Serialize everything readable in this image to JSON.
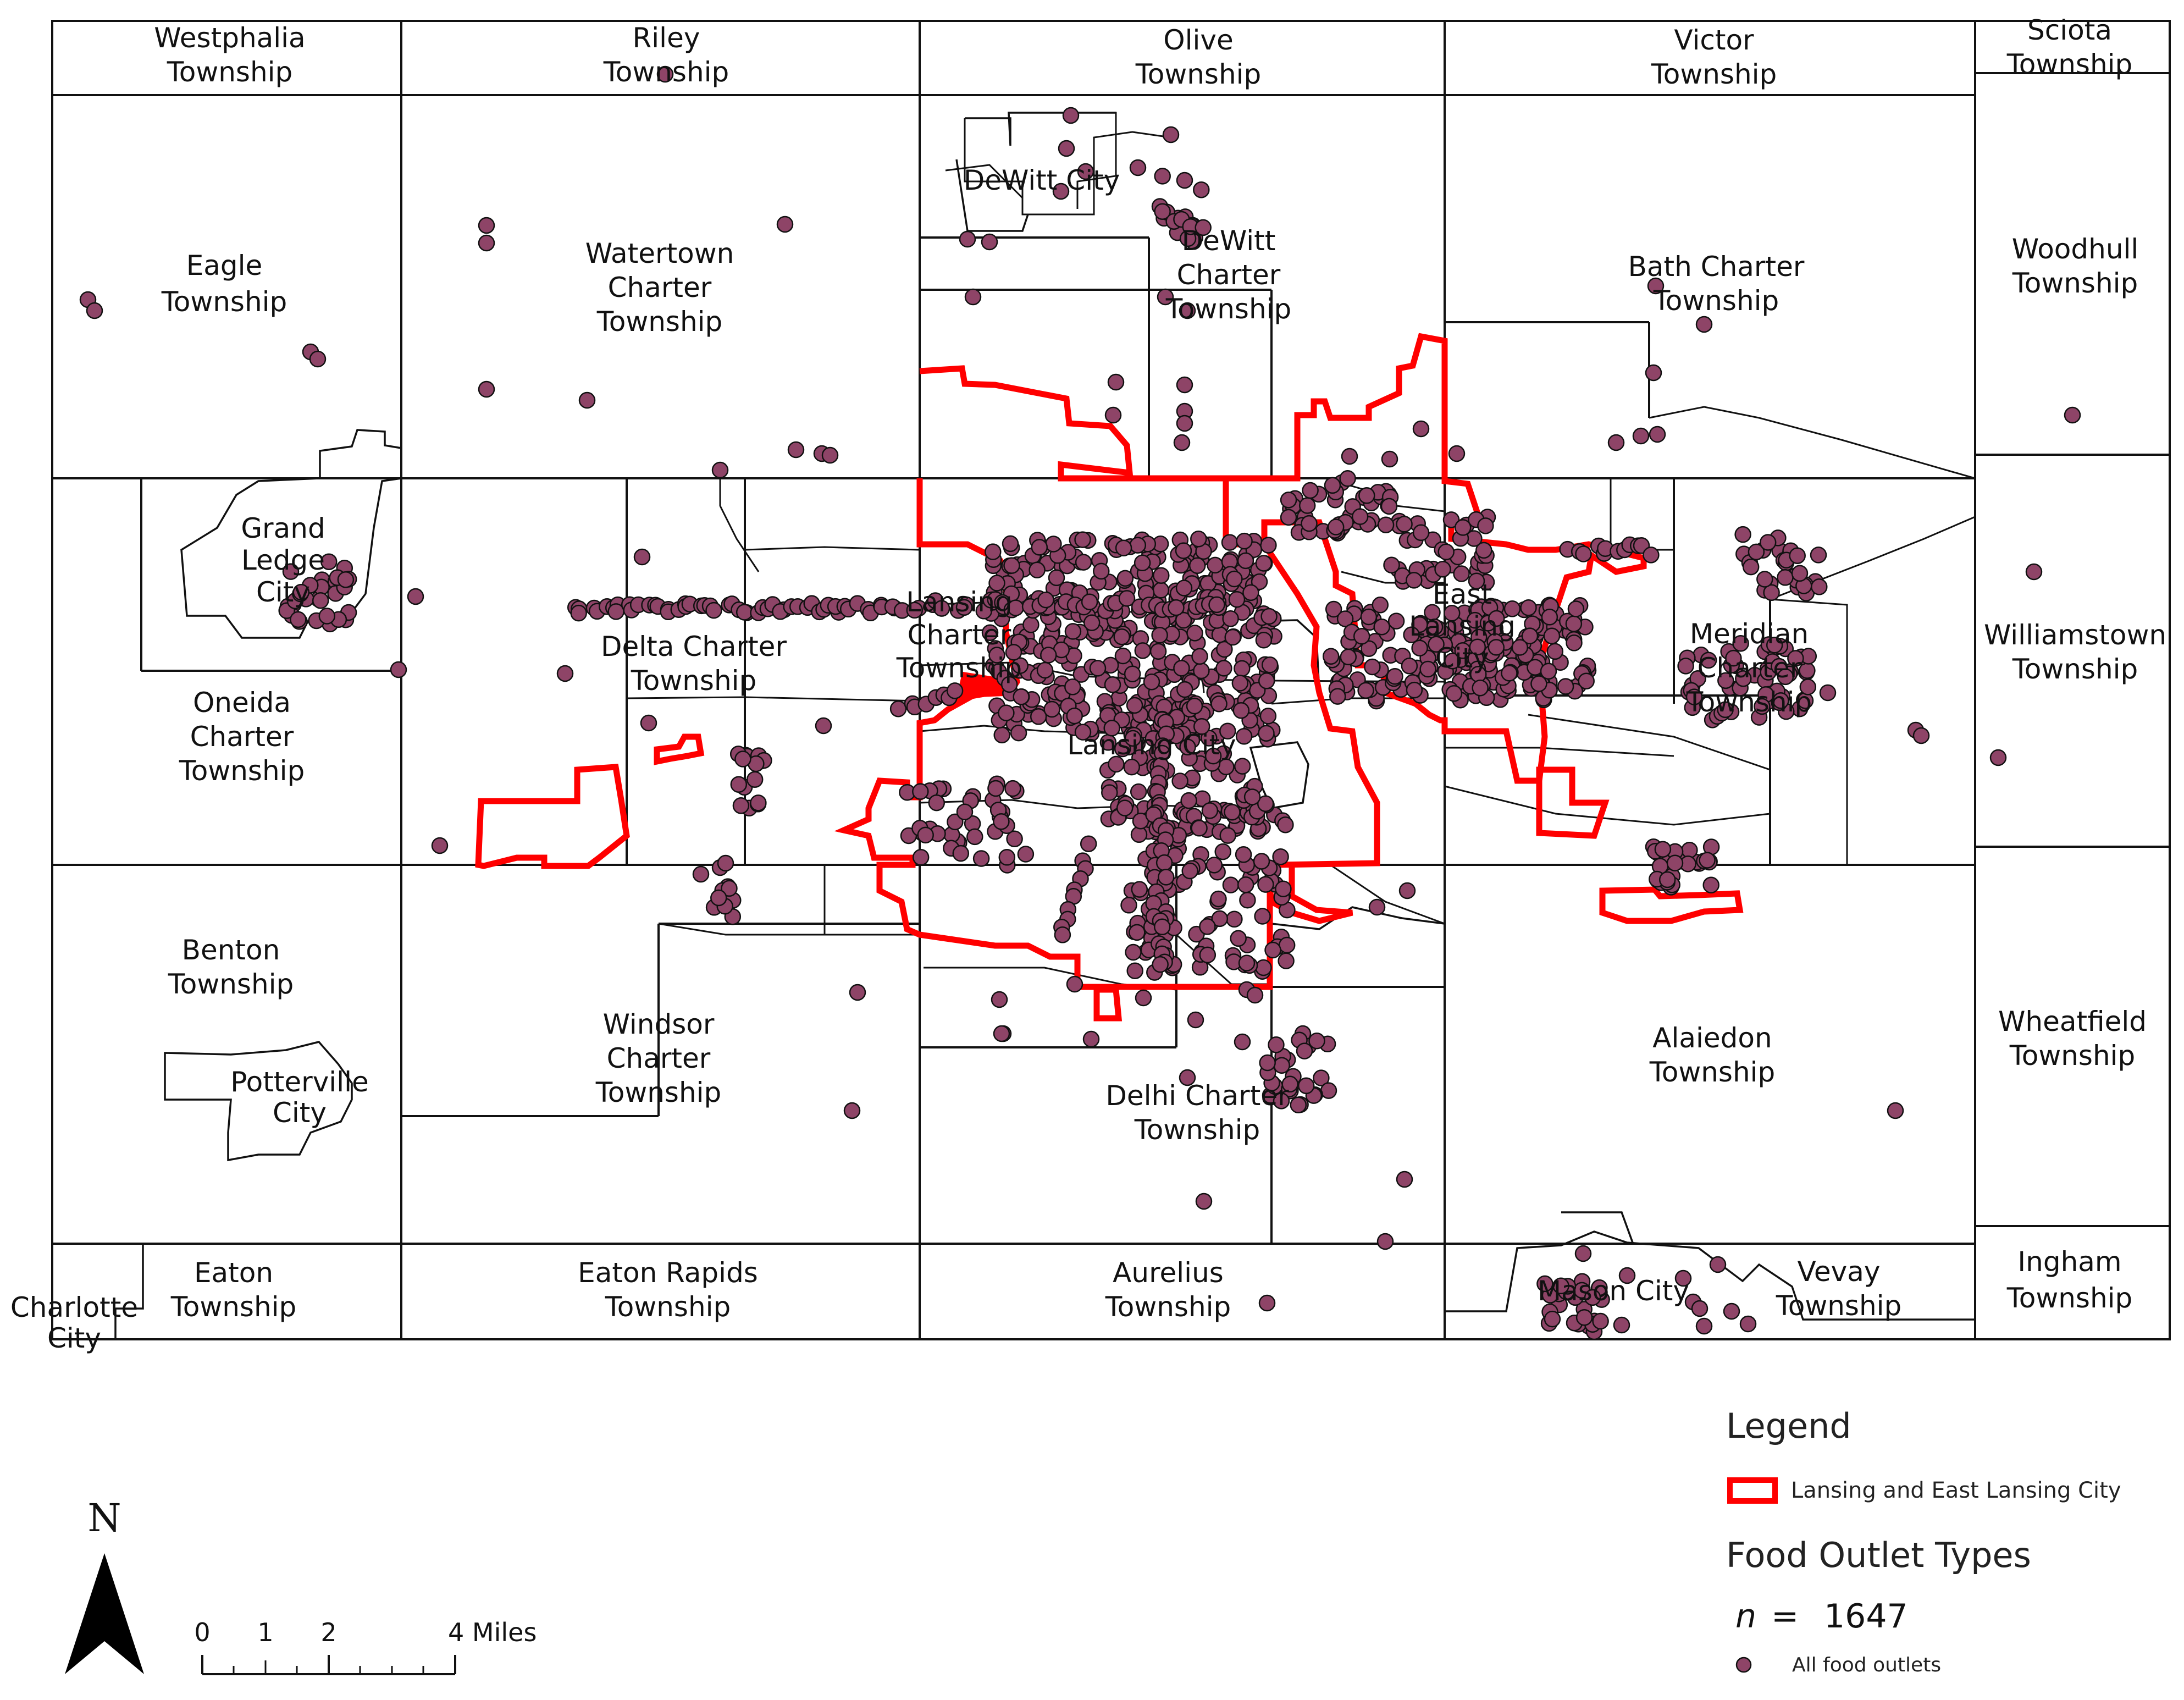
{
  "map": {
    "townships": [
      {
        "id": "westphalia",
        "lines": [
          "Westphalia",
          "Township"
        ]
      },
      {
        "id": "riley",
        "lines": [
          "Riley",
          "Township"
        ]
      },
      {
        "id": "olive",
        "lines": [
          "Olive",
          "Township"
        ]
      },
      {
        "id": "victor",
        "lines": [
          "Victor",
          "Township"
        ]
      },
      {
        "id": "sciota",
        "lines": [
          "Sciota",
          "Township"
        ]
      },
      {
        "id": "eagle",
        "lines": [
          "Eagle",
          "Township"
        ]
      },
      {
        "id": "watertown",
        "lines": [
          "Watertown",
          "Charter",
          "Township"
        ]
      },
      {
        "id": "dewitt-city",
        "lines": [
          "DeWitt City"
        ]
      },
      {
        "id": "dewitt-charter",
        "lines": [
          "DeWitt",
          "Charter",
          "Township"
        ]
      },
      {
        "id": "bath",
        "lines": [
          "Bath Charter",
          "Township"
        ]
      },
      {
        "id": "woodhull",
        "lines": [
          "Woodhull",
          "Township"
        ]
      },
      {
        "id": "grand-ledge",
        "lines": [
          "Grand",
          "Ledge",
          "City"
        ]
      },
      {
        "id": "delta",
        "lines": [
          "Delta Charter",
          "Township"
        ]
      },
      {
        "id": "lansing-charter",
        "lines": [
          "Lansing",
          "Charter",
          "Township"
        ]
      },
      {
        "id": "east-lansing",
        "lines": [
          "East",
          "Lansing",
          "City"
        ]
      },
      {
        "id": "meridian",
        "lines": [
          "Meridian",
          "Charter",
          "Township"
        ]
      },
      {
        "id": "williamstown",
        "lines": [
          "Williamstown",
          "Township"
        ]
      },
      {
        "id": "oneida",
        "lines": [
          "Oneida",
          "Charter",
          "Township"
        ]
      },
      {
        "id": "lansing-city",
        "lines": [
          "Lansing City"
        ]
      },
      {
        "id": "benton",
        "lines": [
          "Benton",
          "Township"
        ]
      },
      {
        "id": "windsor",
        "lines": [
          "Windsor",
          "Charter",
          "Township"
        ]
      },
      {
        "id": "alaiedon",
        "lines": [
          "Alaiedon",
          "Township"
        ]
      },
      {
        "id": "wheatfield",
        "lines": [
          "Wheatfield",
          "Township"
        ]
      },
      {
        "id": "potterville",
        "lines": [
          "Potterville",
          "City"
        ]
      },
      {
        "id": "delhi",
        "lines": [
          "Delhi Charter",
          "Township"
        ]
      },
      {
        "id": "eaton",
        "lines": [
          "Eaton",
          "Township"
        ]
      },
      {
        "id": "eaton-rapids",
        "lines": [
          "Eaton Rapids",
          "Township"
        ]
      },
      {
        "id": "aurelius",
        "lines": [
          "Aurelius",
          "Township"
        ]
      },
      {
        "id": "mason-city",
        "lines": [
          "Mason City"
        ]
      },
      {
        "id": "vevay",
        "lines": [
          "Vevay",
          "Township"
        ]
      },
      {
        "id": "ingham",
        "lines": [
          "Ingham",
          "Township"
        ]
      },
      {
        "id": "charlotte",
        "lines": [
          "Charlotte",
          "City"
        ]
      }
    ],
    "point_color": "#8e4467",
    "boundary_color": "#ff0000"
  },
  "legend": {
    "title": "Legend",
    "boundary_label": "Lansing and East Lansing City",
    "outlet_title": "Food Outlet Types",
    "n_symbol": "n",
    "n_equals": "=",
    "n_value": "1647",
    "point_label": "All food outlets"
  },
  "north_arrow": {
    "label": "N"
  },
  "scale_bar": {
    "ticks": [
      "0",
      "1",
      "2",
      "4 Miles"
    ]
  }
}
